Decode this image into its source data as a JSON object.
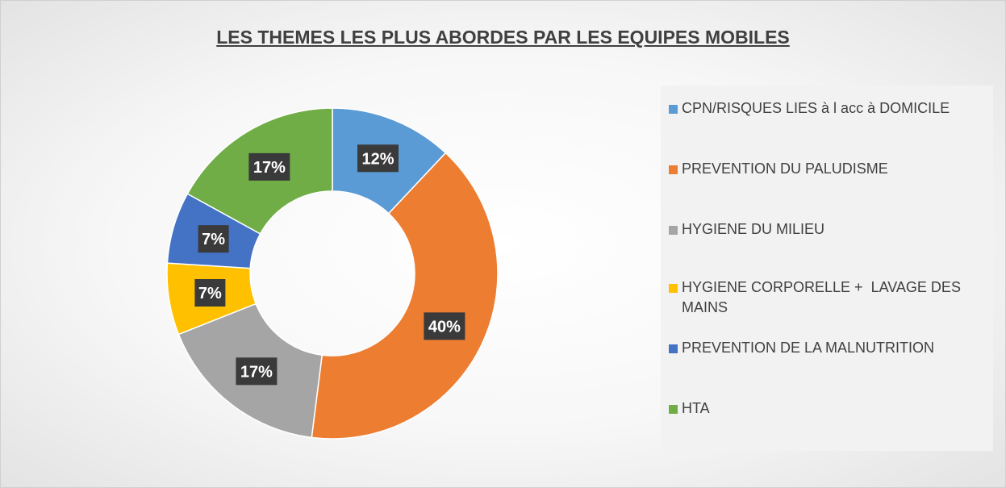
{
  "chart_data": {
    "type": "donut",
    "title": "LES THEMES LES PLUS ABORDES PAR LES EQUIPES MOBILES",
    "categories": [
      "CPN/RISQUES LIES à l acc à DOMICILE",
      "PREVENTION DU PALUDISME",
      "HYGIENE DU MILIEU",
      "HYGIENE CORPORELLE +  LAVAGE DES MAINS",
      "PREVENTION DE LA MALNUTRITION",
      "HTA"
    ],
    "values": [
      12,
      40,
      17,
      7,
      7,
      17
    ],
    "value_labels": [
      "12%",
      "40%",
      "17%",
      "7%",
      "7%",
      "17%"
    ],
    "colors": [
      "#5b9bd5",
      "#ed7d31",
      "#a5a5a5",
      "#ffc000",
      "#4472c4",
      "#70ad47"
    ],
    "legend": "right"
  }
}
